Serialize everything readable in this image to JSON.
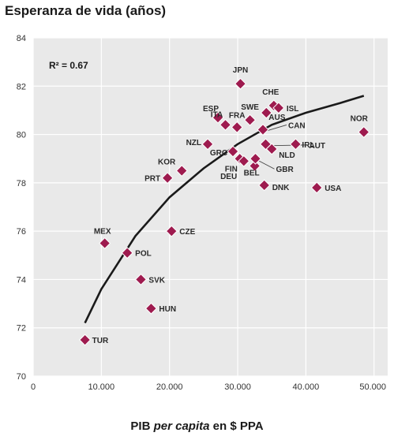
{
  "chart_data": {
    "type": "scatter",
    "title": "Esperanza de vida (años)",
    "xlabel_parts": [
      "PIB ",
      "per capita",
      " en $ PPA"
    ],
    "annotation": "R² = 0.67",
    "xlim": [
      0,
      52000
    ],
    "ylim": [
      70,
      84
    ],
    "xticks": [
      0,
      10000,
      20000,
      30000,
      40000,
      50000
    ],
    "xtick_labels": [
      "0",
      "10.000",
      "20.000",
      "30.000",
      "40.000",
      "50.000"
    ],
    "yticks": [
      70,
      72,
      74,
      76,
      78,
      80,
      82,
      84
    ],
    "ytick_labels": [
      "70",
      "72",
      "74",
      "76",
      "78",
      "80",
      "82",
      "84"
    ],
    "grid": true,
    "colors": {
      "marker": "#9e1b4f",
      "marker_edge": "#ffffff",
      "plot_bg": "#e9e9e9",
      "curve": "#1a1a1a"
    },
    "points": [
      {
        "label": "TUR",
        "x": 7600,
        "y": 71.5
      },
      {
        "label": "MEX",
        "x": 10500,
        "y": 75.5
      },
      {
        "label": "POL",
        "x": 13800,
        "y": 75.1
      },
      {
        "label": "SVK",
        "x": 15800,
        "y": 74.0
      },
      {
        "label": "HUN",
        "x": 17300,
        "y": 72.8
      },
      {
        "label": "CZE",
        "x": 20300,
        "y": 76.0
      },
      {
        "label": "PRT",
        "x": 19700,
        "y": 78.2
      },
      {
        "label": "KOR",
        "x": 21800,
        "y": 78.5
      },
      {
        "label": "NZL",
        "x": 25600,
        "y": 79.6
      },
      {
        "label": "ESP",
        "x": 27100,
        "y": 80.7
      },
      {
        "label": "ITA",
        "x": 28200,
        "y": 80.4
      },
      {
        "label": "GRC",
        "x": 29300,
        "y": 79.3
      },
      {
        "label": "FRA",
        "x": 29900,
        "y": 80.3
      },
      {
        "label": "DEU",
        "x": 30300,
        "y": 79.0
      },
      {
        "label": "FIN",
        "x": 30900,
        "y": 78.9
      },
      {
        "label": "JPN",
        "x": 30400,
        "y": 82.1
      },
      {
        "label": "SWE",
        "x": 31800,
        "y": 80.6
      },
      {
        "label": "BEL",
        "x": 32500,
        "y": 78.7
      },
      {
        "label": "GBR",
        "x": 32600,
        "y": 79.0
      },
      {
        "label": "CHE",
        "x": 35300,
        "y": 81.2
      },
      {
        "label": "AUS",
        "x": 34200,
        "y": 80.9
      },
      {
        "label": "ISL",
        "x": 36000,
        "y": 81.1
      },
      {
        "label": "CAN",
        "x": 33700,
        "y": 80.2
      },
      {
        "label": "AUT",
        "x": 34100,
        "y": 79.6
      },
      {
        "label": "NLD",
        "x": 35000,
        "y": 79.4
      },
      {
        "label": "DNK",
        "x": 33900,
        "y": 77.9
      },
      {
        "label": "IRL",
        "x": 38500,
        "y": 79.6
      },
      {
        "label": "USA",
        "x": 41600,
        "y": 77.8
      },
      {
        "label": "NOR",
        "x": 48500,
        "y": 80.1
      }
    ],
    "trend_curve": {
      "type": "logarithmic",
      "x": [
        7600,
        10000,
        15000,
        20000,
        25000,
        30000,
        35000,
        40000,
        45000,
        48500
      ],
      "y": [
        72.2,
        73.6,
        75.8,
        77.4,
        78.6,
        79.6,
        80.4,
        80.9,
        81.3,
        81.6
      ]
    }
  }
}
